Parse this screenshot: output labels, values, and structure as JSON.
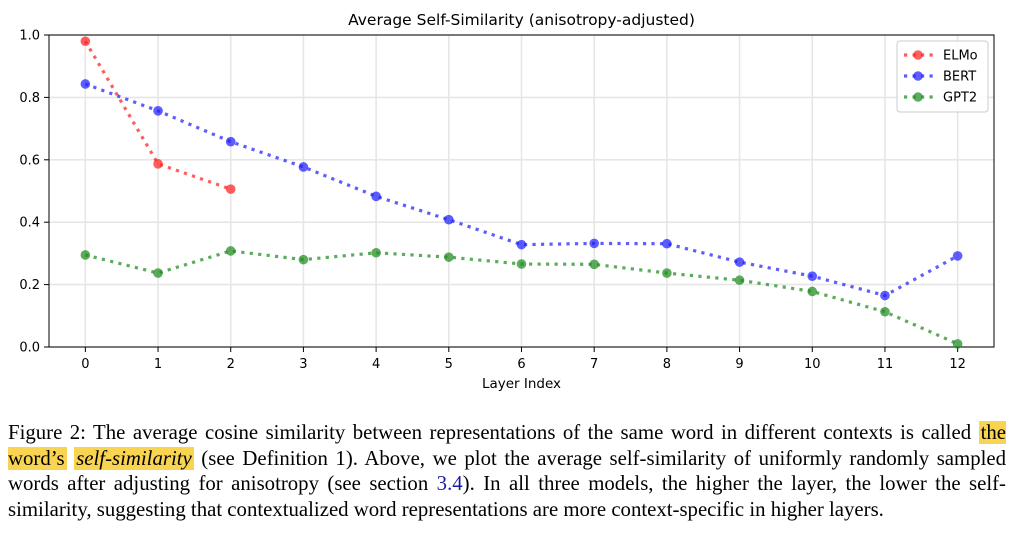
{
  "chart_data": {
    "type": "line",
    "title": "Average Self-Similarity (anisotropy-adjusted)",
    "xlabel": "Layer Index",
    "ylabel": "",
    "xlim": [
      -0.5,
      12.5
    ],
    "ylim": [
      0.0,
      1.0
    ],
    "x_ticks": [
      0,
      1,
      2,
      3,
      4,
      5,
      6,
      7,
      8,
      9,
      10,
      11,
      12
    ],
    "y_ticks": [
      0.0,
      0.2,
      0.4,
      0.6,
      0.8,
      1.0
    ],
    "y_tick_labels": [
      "0.0",
      "0.2",
      "0.4",
      "0.6",
      "0.8",
      "1.0"
    ],
    "grid": true,
    "legend_position": "top-right",
    "series": [
      {
        "name": "ELMo",
        "color": "#ff2020",
        "x": [
          0,
          1,
          2
        ],
        "values": [
          0.98,
          0.587,
          0.506
        ]
      },
      {
        "name": "BERT",
        "color": "#2020ff",
        "x": [
          0,
          1,
          2,
          3,
          4,
          5,
          6,
          7,
          8,
          9,
          10,
          11,
          12
        ],
        "values": [
          0.843,
          0.757,
          0.658,
          0.577,
          0.483,
          0.408,
          0.328,
          0.332,
          0.331,
          0.272,
          0.227,
          0.165,
          0.292
        ]
      },
      {
        "name": "GPT2",
        "color": "#1e8c1e",
        "x": [
          0,
          1,
          2,
          3,
          4,
          5,
          6,
          7,
          8,
          9,
          10,
          11,
          12
        ],
        "values": [
          0.295,
          0.237,
          0.308,
          0.28,
          0.302,
          0.288,
          0.266,
          0.265,
          0.237,
          0.214,
          0.178,
          0.113,
          0.01
        ]
      }
    ]
  },
  "caption": {
    "label": "Figure 2:",
    "text_1": " The average cosine similarity between representations of the same word in different contexts is called ",
    "highlight_1": "the word’s",
    "highlight_2": "self-similarity",
    "text_2": " (see Definition 1). Above, we plot the average self-similarity of uniformly randomly sampled words after adjusting for anisotropy (see section ",
    "section_ref": "3.4",
    "text_3": "). In all three models, the higher the layer, the lower the self-similarity, suggesting that contextualized word representations are more context-specific in higher layers."
  }
}
